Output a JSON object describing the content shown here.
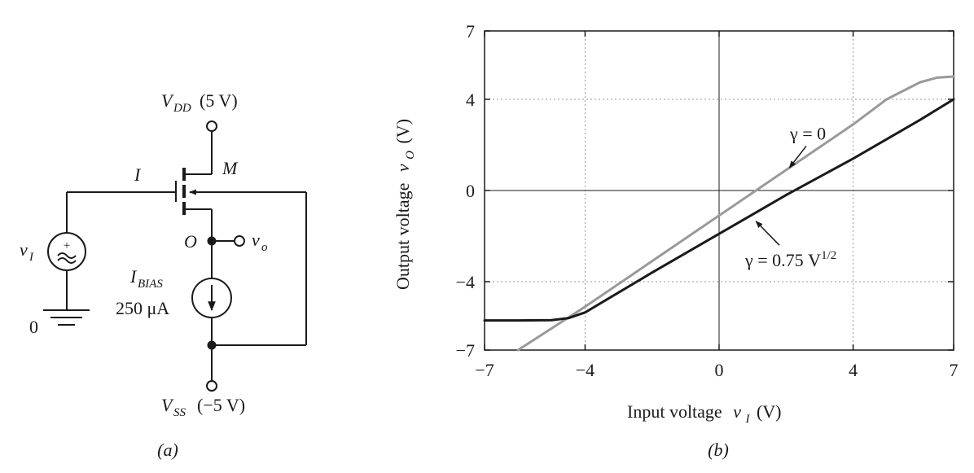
{
  "circuit": {
    "vdd_label": "V",
    "vdd_sub": "DD",
    "vdd_value": "(5 V)",
    "vss_label": "V",
    "vss_sub": "SS",
    "vss_value": "(−5 V)",
    "transistor_label": "M",
    "current_label": "I",
    "node_label": "O",
    "output_label": "v",
    "output_sub": "o",
    "input_label": "v",
    "input_sub": "I",
    "source_plus": "+",
    "ground_label": "0",
    "bias_label": "I",
    "bias_sub": "BIAS",
    "bias_value": "250 μA",
    "caption": "(a)"
  },
  "chart_data": {
    "type": "line",
    "xlabel_text": "Input voltage",
    "xlabel_var": "v",
    "xlabel_sub": "I",
    "xlabel_unit": "(V)",
    "ylabel_text": "Output voltage",
    "ylabel_var": "v",
    "ylabel_sub": "O",
    "ylabel_unit": "(V)",
    "xlim": [
      -7,
      7
    ],
    "ylim": [
      -7,
      7
    ],
    "xticks": [
      -7,
      -4,
      0,
      4,
      7
    ],
    "yticks": [
      -7,
      -4,
      0,
      4,
      7
    ],
    "xtick_labels": [
      "−7",
      "−4",
      "0",
      "4",
      "7"
    ],
    "ytick_labels": [
      "−7",
      "−4",
      "0",
      "4",
      "7"
    ],
    "grid": true,
    "series": [
      {
        "color": "#9a9a9a",
        "x": [
          -6.0,
          -4.0,
          -2.0,
          0.0,
          2.0,
          4.0,
          5.0,
          6.0,
          6.5,
          7.0
        ],
        "y": [
          -7.0,
          -5.1,
          -3.1,
          -1.1,
          0.9,
          2.9,
          4.0,
          4.75,
          4.95,
          5.0
        ]
      },
      {
        "color": "#1a1a1a",
        "x": [
          -7.0,
          -6.0,
          -5.0,
          -4.5,
          -4.2,
          -4.0,
          -2.0,
          0.0,
          2.0,
          4.0,
          6.0,
          7.0
        ],
        "y": [
          -5.7,
          -5.7,
          -5.69,
          -5.6,
          -5.45,
          -5.35,
          -3.6,
          -1.9,
          -0.2,
          1.4,
          3.1,
          4.0
        ]
      }
    ],
    "annotations": [
      {
        "text": "γ = 0",
        "sup": "",
        "arrow_from": [
          2.6,
          1.95
        ],
        "arrow_to": [
          2.1,
          1.0
        ]
      },
      {
        "text": "γ = 0.75 V",
        "sup": "1/2",
        "arrow_from": [
          1.8,
          -2.4
        ],
        "arrow_to": [
          1.1,
          -1.35
        ]
      }
    ],
    "caption": "(b)"
  }
}
